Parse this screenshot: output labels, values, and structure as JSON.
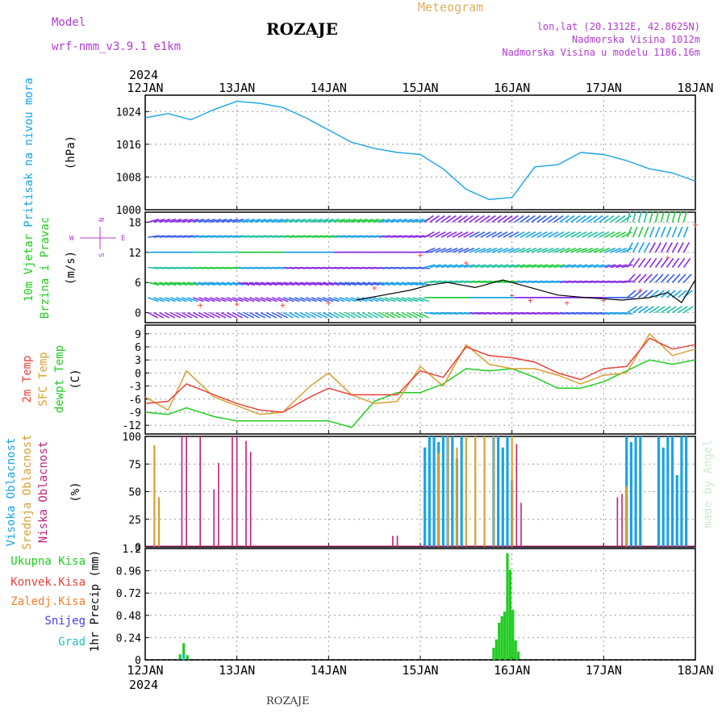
{
  "header": {
    "model_label": "Model",
    "model_name": "wrf-nmm_v3.9.1 e1km",
    "station": "ROZAJE",
    "meteogram": "Meteogram",
    "lonlat": "lon,lat (20.1312E, 42.8625N)",
    "altitude": "Nadmorska Visina 1012m",
    "model_altitude": "Nadmorska Visina u modelu 1186.16m",
    "credit": "made by Angel",
    "footer_station": "ROZAJE"
  },
  "colors": {
    "pressure": "#1aa3e8",
    "t2m": "#e8413c",
    "tsfc": "#d9a030",
    "dewpt": "#20cc20",
    "cloud_high": "#1aa3e8",
    "cloud_mid": "#d9a030",
    "cloud_low": "#c0207a",
    "precip_total": "#20cc20",
    "precip_conv": "#e8413c",
    "precip_grid": "#f08030",
    "snow": "#4040e0",
    "hail": "#20c0c0",
    "label_purple": "#b03cd0",
    "meteogram": "#e0b060"
  },
  "chart_data": {
    "type": "line",
    "time_axis": {
      "year": "2024",
      "ticks": [
        "12JAN",
        "13JAN",
        "14JAN",
        "15JAN",
        "16JAN",
        "17JAN",
        "18JAN"
      ],
      "range_days": [
        0,
        6
      ]
    },
    "panels": [
      {
        "id": "pressure",
        "label": "Pritisak na nivou mora",
        "unit": "(hPa)",
        "ylim": [
          1000,
          1028
        ],
        "yticks": [
          "1000",
          "1008",
          "1016",
          "1024"
        ],
        "series": [
          {
            "name": "Pritisak na nivou mora",
            "x": [
              0,
              0.25,
              0.5,
              0.75,
              1.0,
              1.25,
              1.5,
              1.75,
              2.0,
              2.25,
              2.5,
              2.75,
              3.0,
              3.25,
              3.5,
              3.75,
              4.0,
              4.25,
              4.5,
              4.75,
              5.0,
              5.25,
              5.5,
              5.75,
              6.0
            ],
            "y": [
              1022.5,
              1023.5,
              1022,
              1024.5,
              1026.5,
              1026,
              1025,
              1022.5,
              1019.5,
              1016.5,
              1015,
              1014,
              1013.5,
              1010,
              1005,
              1002.5,
              1003,
              1010.5,
              1011,
              1014,
              1013.5,
              1012,
              1010,
              1009,
              1007
            ]
          }
        ]
      },
      {
        "id": "wind",
        "label": "10m Vjetar Brzina i Pravac",
        "unit": "(m/s)",
        "ylim": [
          -2,
          20
        ],
        "yticks": [
          "0",
          "6",
          "12",
          "18"
        ],
        "compass": {
          "n": "N",
          "s": "S",
          "e": "E",
          "w": "W"
        },
        "series": [
          {
            "name": "speed",
            "x": [
              2.3,
              2.6,
              2.9,
              3.1,
              3.3,
              3.6,
              3.9,
              4.2,
              4.5,
              4.8,
              5.2,
              5.5,
              5.7,
              5.85,
              6.0
            ],
            "y": [
              2.5,
              3.5,
              4.5,
              5.5,
              6.0,
              5.0,
              6.5,
              5.0,
              3.5,
              3.0,
              2.5,
              3.0,
              4.0,
              2.0,
              6.5
            ]
          },
          {
            "name": "gust",
            "x": [
              0.6,
              1.0,
              1.5,
              2.0,
              2.5,
              3.0,
              3.5,
              4.0,
              4.2,
              4.6,
              5.0,
              5.4,
              5.7,
              6.0
            ],
            "y": [
              1.5,
              1.8,
              1.5,
              2.0,
              5.0,
              11.5,
              10.0,
              3.5,
              2.5,
              2.0,
              2.5,
              4.5,
              11.0,
              17.5
            ]
          }
        ]
      },
      {
        "id": "temperature",
        "labels": [
          "2m Temp",
          "SFC Temp",
          "dewpt Temp"
        ],
        "unit": "(C)",
        "ylim": [
          -14,
          11
        ],
        "yticks": [
          "-12",
          "-9",
          "-6",
          "-3",
          "0",
          "3",
          "6",
          "9"
        ],
        "series": [
          {
            "name": "2m Temp",
            "x": [
              0,
              0.25,
              0.45,
              0.75,
              1.0,
              1.25,
              1.5,
              1.8,
              2.0,
              2.25,
              2.5,
              2.75,
              3.0,
              3.25,
              3.5,
              3.75,
              4.0,
              4.25,
              4.5,
              4.75,
              5.0,
              5.25,
              5.5,
              5.75,
              6.0
            ],
            "y": [
              -7,
              -6.5,
              -2.5,
              -5,
              -7,
              -8.5,
              -9,
              -5.5,
              -3.5,
              -5,
              -5,
              -5,
              0.5,
              -1,
              6,
              4,
              3.5,
              2.5,
              0,
              -1.5,
              1,
              1.5,
              8,
              5.5,
              6.5
            ]
          },
          {
            "name": "SFC Temp",
            "x": [
              0,
              0.25,
              0.45,
              0.75,
              1.0,
              1.25,
              1.5,
              1.8,
              2.0,
              2.25,
              2.5,
              2.75,
              3.0,
              3.25,
              3.5,
              3.75,
              4.0,
              4.25,
              4.5,
              4.75,
              5.0,
              5.25,
              5.5,
              5.75,
              6.0
            ],
            "y": [
              -5.5,
              -8.5,
              0.5,
              -5.5,
              -7.5,
              -9.5,
              -9,
              -3,
              0,
              -5,
              -7,
              -6.5,
              1.5,
              -3,
              6.5,
              2,
              1,
              1,
              -0.5,
              -2.5,
              -0.5,
              0,
              9,
              4,
              5.5
            ]
          },
          {
            "name": "dewpt Temp",
            "x": [
              0,
              0.25,
              0.45,
              0.75,
              1.0,
              1.25,
              1.5,
              1.8,
              2.0,
              2.25,
              2.5,
              2.75,
              3.0,
              3.25,
              3.5,
              3.75,
              4.0,
              4.25,
              4.5,
              4.75,
              5.0,
              5.25,
              5.5,
              5.75,
              6.0
            ],
            "y": [
              -9,
              -9.5,
              -8,
              -10,
              -11,
              -11,
              -11,
              -11,
              -11,
              -12.5,
              -6.5,
              -4.5,
              -4.5,
              -2.5,
              1,
              0.5,
              1,
              -1,
              -3.5,
              -3.5,
              -2,
              0.5,
              3,
              2,
              3
            ]
          }
        ]
      },
      {
        "id": "clouds",
        "labels": [
          "Visoka Oblacnost",
          "Srednja Oblacnost",
          "Niska Oblacnost"
        ],
        "unit": "(%)",
        "ylim": [
          0,
          100
        ],
        "yticks": [
          "0",
          "25",
          "50",
          "75",
          "100"
        ],
        "series": [
          {
            "name": "Visoka Oblacnost",
            "x": [
              3.05,
              3.1,
              3.15,
              3.2,
              3.25,
              3.3,
              3.35,
              3.4,
              3.45,
              3.8,
              3.85,
              3.9,
              3.95,
              4.0,
              5.25,
              5.3,
              5.35,
              5.4,
              5.6,
              5.65,
              5.7,
              5.75,
              5.8,
              5.85,
              5.9
            ],
            "y": [
              90,
              100,
              100,
              95,
              100,
              100,
              100,
              80,
              100,
              100,
              100,
              90,
              100,
              60,
              100,
              95,
              100,
              100,
              100,
              90,
              100,
              100,
              65,
              100,
              100
            ]
          },
          {
            "name": "Srednja Oblacnost",
            "x": [
              0.1,
              0.15,
              3.2,
              3.3,
              3.4,
              3.5,
              3.6,
              3.7,
              3.8,
              4.0,
              5.25
            ],
            "y": [
              92,
              45,
              85,
              100,
              90,
              100,
              100,
              100,
              100,
              100,
              55
            ]
          },
          {
            "name": "Niska Oblacnost",
            "x": [
              0.4,
              0.45,
              0.6,
              0.75,
              0.8,
              0.95,
              1.0,
              1.1,
              1.15,
              1.25,
              2.7,
              2.75,
              4.05,
              4.1,
              4.15,
              5.15,
              5.2
            ],
            "y": [
              100,
              100,
              100,
              52,
              76,
              100,
              100,
              96,
              86,
              0,
              10,
              10,
              93,
              40,
              0,
              45,
              48
            ]
          }
        ]
      },
      {
        "id": "precip",
        "labels": [
          "Ukupna Kisa",
          "Konvek.Kisa",
          "Zaledj.Kisa",
          "Snijeg",
          "Grad"
        ],
        "unit": "1hr Precip (mm)",
        "ylim": [
          0,
          1.2
        ],
        "yticks": [
          "0",
          "0.24",
          "0.48",
          "0.72",
          "0.96",
          "1.2"
        ],
        "series": [
          {
            "name": "Ukupna Kisa",
            "x": [
              0.38,
              0.42,
              0.46,
              3.8,
              3.83,
              3.86,
              3.89,
              3.92,
              3.95,
              3.98,
              4.01,
              4.04,
              4.07,
              4.5
            ],
            "y": [
              0.06,
              0.18,
              0.05,
              0.13,
              0.22,
              0.4,
              0.47,
              0.52,
              1.15,
              0.97,
              0.54,
              0.21,
              0.09,
              0.01
            ]
          },
          {
            "name": "Grad",
            "x": [
              0.42
            ],
            "y": [
              0.06
            ]
          }
        ]
      }
    ]
  }
}
